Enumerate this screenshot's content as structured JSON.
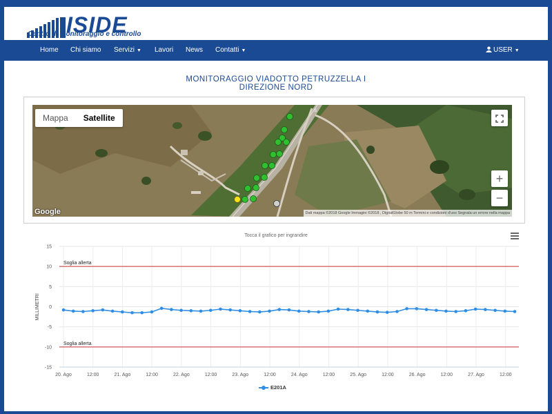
{
  "logo": {
    "text": "ISIDE",
    "subtitle": "Centro di monitoraggio e controllo"
  },
  "nav": {
    "home": "Home",
    "chi_siamo": "Chi siamo",
    "servizi": "Servizi",
    "lavori": "Lavori",
    "news": "News",
    "contatti": "Contatti",
    "user": "USER"
  },
  "page": {
    "title_line1": "MONITORAGGIO VIADOTTO PETRUZZELLA I",
    "title_line2": "DIREZIONE NORD"
  },
  "map": {
    "toggle_map": "Mappa",
    "toggle_satellite": "Satellite",
    "selected": "Satellite",
    "zoom_in": "+",
    "zoom_out": "−",
    "google_logo": "Google",
    "attribution": "Dati mappa ©2018 Google Immagini ©2018 , DigitalGlobe   50 m        Termini e condizioni d'uso   Segnala un errore nella mappa",
    "colors": {
      "green": "#2ec02e",
      "yellow": "#f5e21a",
      "grey": "#cfcfcf"
    }
  },
  "chart_hint": "Tocca il grafico per ingrandire",
  "chart_data": {
    "type": "line",
    "ylabel": "MILLIMETRI",
    "ylim": [
      -15,
      15
    ],
    "yticks": [
      15,
      10,
      5,
      0,
      -5,
      -10,
      -15
    ],
    "xticks": [
      "20. Ago",
      "12:00",
      "21. Ago",
      "12:00",
      "22. Ago",
      "12:00",
      "23. Ago",
      "12:00",
      "24. Ago",
      "12:00",
      "25. Ago",
      "12:00",
      "26. Ago",
      "12:00",
      "27. Ago",
      "12:00"
    ],
    "plot_bands": [
      {
        "value": 10,
        "label": "Soglia allerta",
        "color": "#cc3333"
      },
      {
        "value": -10,
        "label": "Soglia allerta",
        "color": "#cc3333"
      }
    ],
    "series": [
      {
        "name": "E201A",
        "color": "#2f8de4",
        "values": [
          -0.8,
          -1.1,
          -1.2,
          -1.0,
          -0.8,
          -1.1,
          -1.3,
          -1.5,
          -1.5,
          -1.3,
          -0.4,
          -0.7,
          -0.9,
          -1.0,
          -1.1,
          -0.9,
          -0.6,
          -0.8,
          -1.0,
          -1.2,
          -1.3,
          -1.1,
          -0.7,
          -0.8,
          -1.1,
          -1.2,
          -1.3,
          -1.1,
          -0.6,
          -0.7,
          -0.9,
          -1.1,
          -1.3,
          -1.4,
          -1.2,
          -0.5,
          -0.5,
          -0.7,
          -0.9,
          -1.1,
          -1.2,
          -1.0,
          -0.6,
          -0.7,
          -0.9,
          -1.1,
          -1.2
        ]
      }
    ]
  }
}
